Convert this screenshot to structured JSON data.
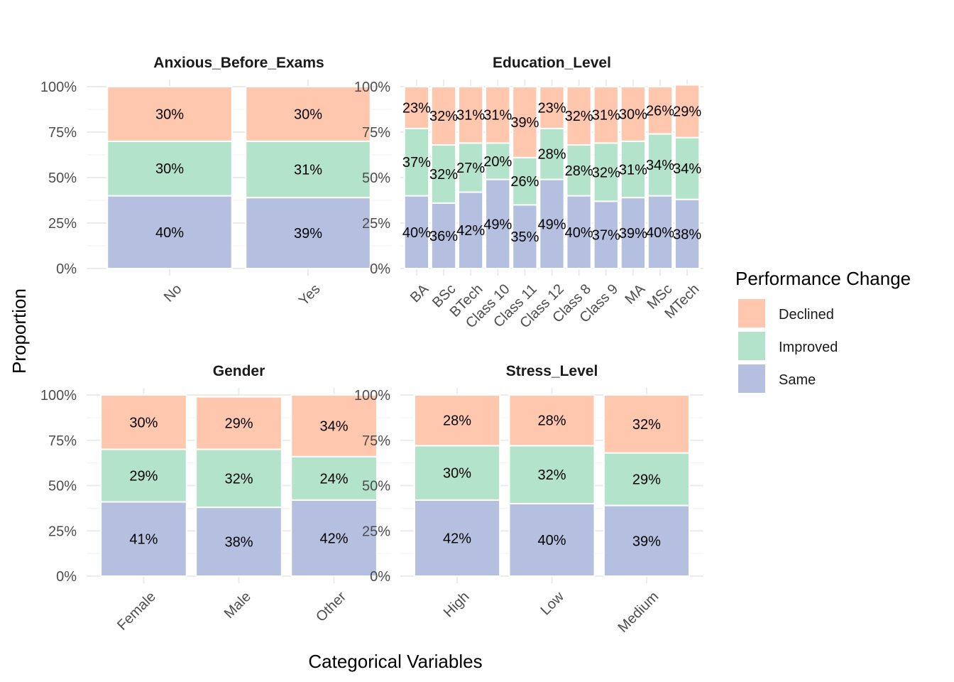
{
  "chart_data": {
    "type": "bar",
    "stacked": true,
    "percent": true,
    "xlabel": "Categorical Variables",
    "ylabel": "Proportion",
    "ylim": [
      0,
      1
    ],
    "yticks": [
      "0%",
      "25%",
      "50%",
      "75%",
      "100%"
    ],
    "legend": {
      "title": "Performance Change",
      "placement": "right",
      "entries": [
        {
          "name": "Declined",
          "color": "#FFC7AE"
        },
        {
          "name": "Improved",
          "color": "#B3E3CB"
        },
        {
          "name": "Same",
          "color": "#B5C0E0"
        }
      ]
    },
    "panels": [
      {
        "title": "Anxious_Before_Exams",
        "categories": [
          "No",
          "Yes"
        ],
        "series": [
          {
            "name": "Same",
            "values": [
              0.4,
              0.39
            ],
            "labels": [
              "40%",
              "39%"
            ]
          },
          {
            "name": "Improved",
            "values": [
              0.3,
              0.31
            ],
            "labels": [
              "30%",
              "31%"
            ]
          },
          {
            "name": "Declined",
            "values": [
              0.3,
              0.3
            ],
            "labels": [
              "30%",
              "30%"
            ]
          }
        ]
      },
      {
        "title": "Education_Level",
        "categories": [
          "BA",
          "BSc",
          "BTech",
          "Class 10",
          "Class 11",
          "Class 12",
          "Class 8",
          "Class 9",
          "MA",
          "MSc",
          "MTech"
        ],
        "series": [
          {
            "name": "Same",
            "values": [
              0.4,
              0.36,
              0.42,
              0.49,
              0.35,
              0.49,
              0.4,
              0.37,
              0.39,
              0.4,
              0.38
            ],
            "labels": [
              "40%",
              "36%",
              "42%",
              "49%",
              "35%",
              "49%",
              "40%",
              "37%",
              "39%",
              "40%",
              "38%"
            ]
          },
          {
            "name": "Improved",
            "values": [
              0.37,
              0.32,
              0.27,
              0.2,
              0.26,
              0.28,
              0.28,
              0.32,
              0.31,
              0.34,
              0.34
            ],
            "labels": [
              "37%",
              "32%",
              "27%",
              "20%",
              "26%",
              "28%",
              "28%",
              "32%",
              "31%",
              "34%",
              "34%"
            ]
          },
          {
            "name": "Declined",
            "values": [
              0.23,
              0.32,
              0.31,
              0.31,
              0.39,
              0.23,
              0.32,
              0.31,
              0.3,
              0.26,
              0.29
            ],
            "labels": [
              "23%",
              "32%",
              "31%",
              "31%",
              "39%",
              "23%",
              "32%",
              "31%",
              "30%",
              "26%",
              "29%"
            ]
          }
        ]
      },
      {
        "title": "Gender",
        "categories": [
          "Female",
          "Male",
          "Other"
        ],
        "series": [
          {
            "name": "Same",
            "values": [
              0.41,
              0.38,
              0.42
            ],
            "labels": [
              "41%",
              "38%",
              "42%"
            ]
          },
          {
            "name": "Improved",
            "values": [
              0.29,
              0.32,
              0.24
            ],
            "labels": [
              "29%",
              "32%",
              "24%"
            ]
          },
          {
            "name": "Declined",
            "values": [
              0.3,
              0.29,
              0.34
            ],
            "labels": [
              "30%",
              "29%",
              "34%"
            ]
          }
        ]
      },
      {
        "title": "Stress_Level",
        "categories": [
          "High",
          "Low",
          "Medium"
        ],
        "series": [
          {
            "name": "Same",
            "values": [
              0.42,
              0.4,
              0.39
            ],
            "labels": [
              "42%",
              "40%",
              "39%"
            ]
          },
          {
            "name": "Improved",
            "values": [
              0.3,
              0.32,
              0.29
            ],
            "labels": [
              "30%",
              "32%",
              "29%"
            ]
          },
          {
            "name": "Declined",
            "values": [
              0.28,
              0.28,
              0.32
            ],
            "labels": [
              "28%",
              "28%",
              "32%"
            ]
          }
        ]
      }
    ]
  }
}
